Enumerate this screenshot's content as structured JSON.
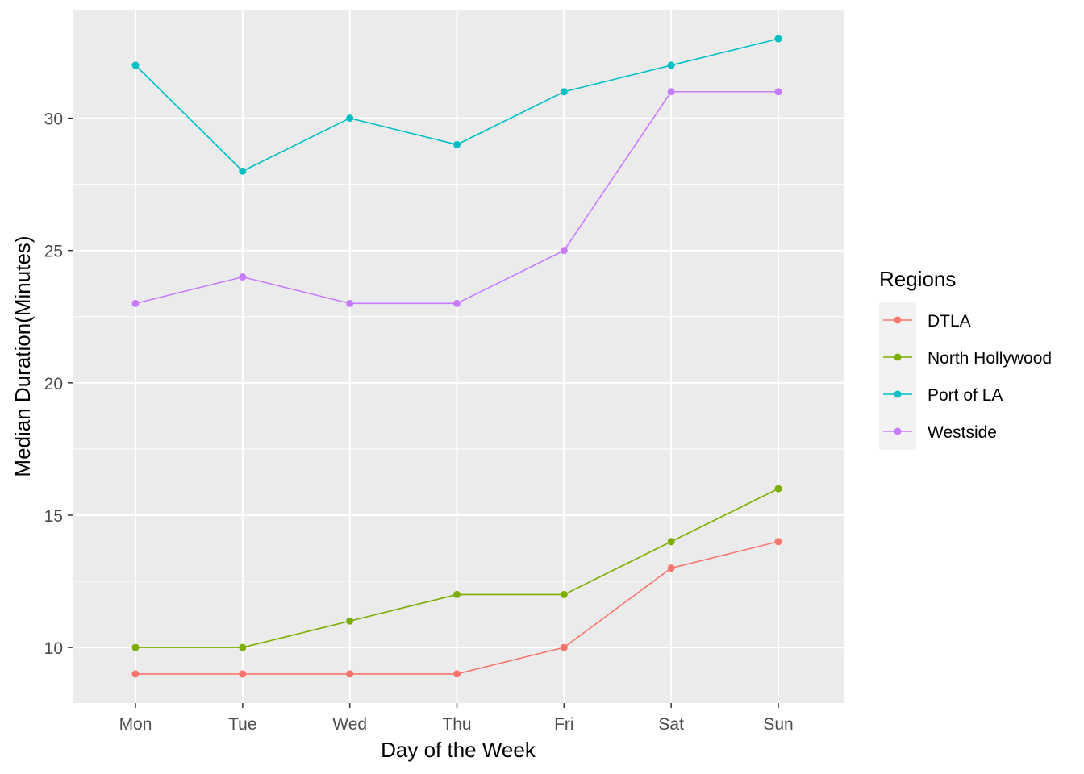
{
  "chart_data": {
    "type": "line",
    "title": "",
    "xlabel": "Day of the Week",
    "ylabel": "Median Duration(Minutes)",
    "categories": [
      "Mon",
      "Tue",
      "Wed",
      "Thu",
      "Fri",
      "Sat",
      "Sun"
    ],
    "ylim": [
      7.9,
      34.1
    ],
    "yticks": [
      10,
      15,
      20,
      25,
      30
    ],
    "grid": true,
    "legend": {
      "title": "Regions",
      "placement": "right"
    },
    "series": [
      {
        "name": "DTLA",
        "color": "#F8766D",
        "values": [
          9,
          9,
          9,
          9,
          10,
          13,
          14
        ]
      },
      {
        "name": "North Hollywood",
        "color": "#7CAE00",
        "values": [
          10,
          10,
          11,
          12,
          12,
          14,
          16
        ]
      },
      {
        "name": "Port of LA",
        "color": "#00BFC4",
        "values": [
          32,
          28,
          30,
          29,
          31,
          32,
          33
        ]
      },
      {
        "name": "Westside",
        "color": "#C77CFF",
        "values": [
          23,
          24,
          23,
          23,
          25,
          31,
          31
        ]
      }
    ]
  }
}
